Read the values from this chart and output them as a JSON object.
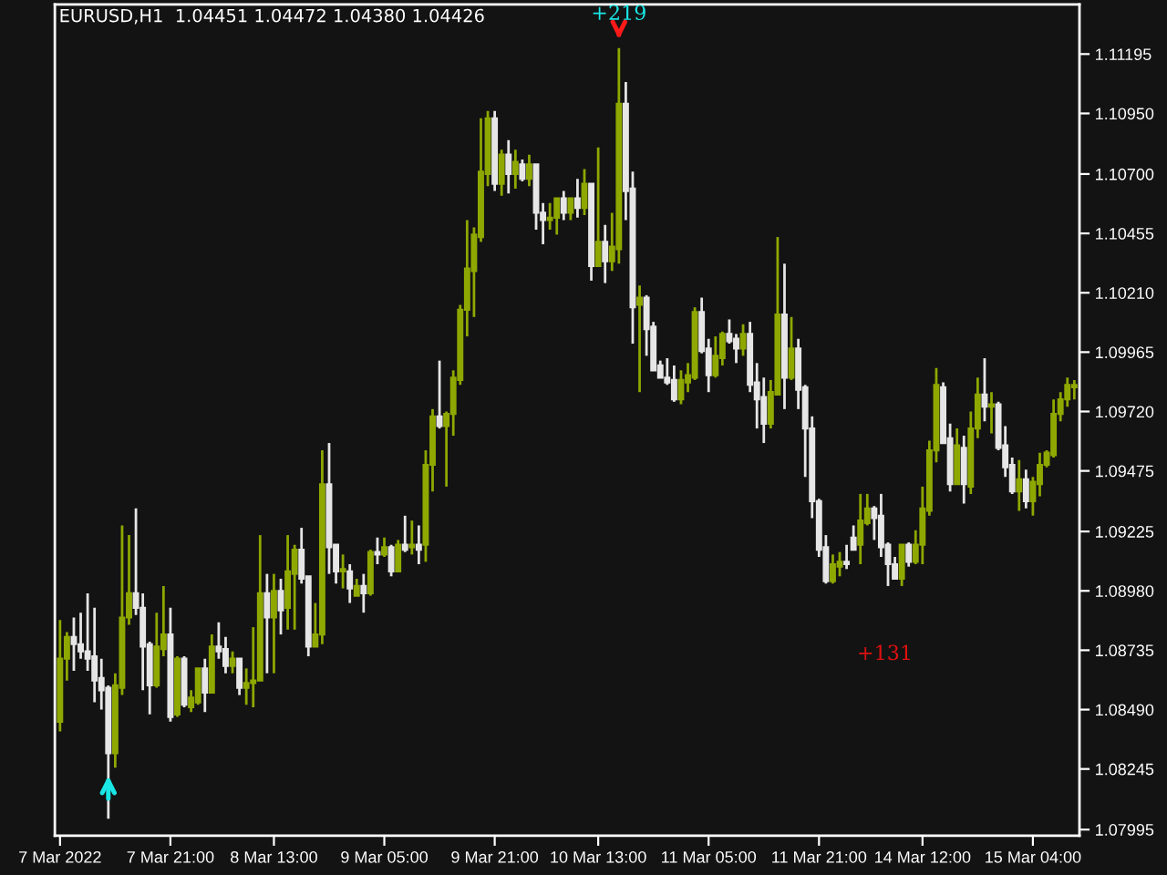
{
  "chart_data": {
    "type": "candlestick",
    "title": "EURUSD,H1  1.04451 1.04472 1.04380 1.04426",
    "annotations": [
      "+219",
      "+131"
    ],
    "categories": [
      "7 Mar 2022",
      null,
      null,
      null,
      null,
      null,
      null,
      null,
      null,
      null,
      null,
      null,
      null,
      null,
      null,
      null,
      "7 Mar 21:00",
      null,
      null,
      null,
      null,
      null,
      null,
      null,
      null,
      null,
      null,
      null,
      null,
      null,
      null,
      "8 Mar 13:00",
      null,
      null,
      null,
      null,
      null,
      null,
      null,
      null,
      null,
      null,
      null,
      null,
      null,
      null,
      null,
      "9 Mar 05:00",
      null,
      null,
      null,
      null,
      null,
      null,
      null,
      null,
      null,
      null,
      null,
      null,
      null,
      null,
      null,
      "9 Mar 21:00",
      null,
      null,
      null,
      null,
      null,
      null,
      null,
      null,
      null,
      null,
      null,
      null,
      null,
      null,
      "10 Mar 13:00",
      null,
      null,
      null,
      null,
      null,
      null,
      null,
      null,
      null,
      null,
      null,
      null,
      null,
      null,
      null,
      "11 Mar 05:00",
      null,
      null,
      null,
      null,
      null,
      null,
      null,
      null,
      null,
      null,
      null,
      null,
      null,
      null,
      null,
      "11 Mar 21:00",
      null,
      null,
      null,
      null,
      null,
      null,
      null,
      null,
      null,
      null,
      null,
      null,
      null,
      null,
      "14 Mar 12:00",
      null,
      null,
      null,
      null,
      null,
      null,
      null,
      null,
      null,
      null,
      null,
      null,
      null,
      null,
      null,
      "15 Mar 04:00",
      null,
      null,
      null,
      null,
      null,
      null
    ],
    "ohlc": [
      [
        1.0844,
        1.0886,
        1.084,
        1.087
      ],
      [
        1.087,
        1.0881,
        1.0861,
        1.0879
      ],
      [
        1.0879,
        1.0887,
        1.0865,
        1.0876
      ],
      [
        1.0876,
        1.0889,
        1.087,
        1.0873
      ],
      [
        1.0873,
        1.0897,
        1.0865,
        1.087
      ],
      [
        1.0871,
        1.0891,
        1.0852,
        1.0861
      ],
      [
        1.0862,
        1.087,
        1.0849,
        1.0857
      ],
      [
        1.0858,
        1.0859,
        1.0804,
        1.0831
      ],
      [
        1.0831,
        1.0864,
        1.0825,
        1.0859
      ],
      [
        1.0858,
        1.0925,
        1.0855,
        1.0887
      ],
      [
        1.0887,
        1.0921,
        1.0884,
        1.0897
      ],
      [
        1.0897,
        1.0932,
        1.0888,
        1.0891
      ],
      [
        1.0891,
        1.0897,
        1.0857,
        1.0875
      ],
      [
        1.0876,
        1.0877,
        1.0847,
        1.0859
      ],
      [
        1.0859,
        1.0889,
        1.0858,
        1.0875
      ],
      [
        1.0874,
        1.09,
        1.0871,
        1.088
      ],
      [
        1.088,
        1.0891,
        1.0844,
        1.0846
      ],
      [
        1.0847,
        1.0871,
        1.0846,
        1.087
      ],
      [
        1.087,
        1.0871,
        1.085,
        1.0851
      ],
      [
        1.085,
        1.0857,
        1.0848,
        1.0854
      ],
      [
        1.0852,
        1.0866,
        1.0851,
        1.0866
      ],
      [
        1.0866,
        1.087,
        1.0848,
        1.0856
      ],
      [
        1.0856,
        1.088,
        1.0856,
        1.0875
      ],
      [
        1.0875,
        1.0885,
        1.087,
        1.0873
      ],
      [
        1.0874,
        1.0879,
        1.0864,
        1.0867
      ],
      [
        1.0867,
        1.0873,
        1.0864,
        1.087
      ],
      [
        1.087,
        1.087,
        1.0855,
        1.0858
      ],
      [
        1.0858,
        1.0866,
        1.0851,
        1.086
      ],
      [
        1.086,
        1.0883,
        1.085,
        1.0861
      ],
      [
        1.0861,
        1.0921,
        1.0861,
        1.0897
      ],
      [
        1.0897,
        1.0905,
        1.0864,
        1.0887
      ],
      [
        1.0887,
        1.0905,
        1.0864,
        1.0898
      ],
      [
        1.0898,
        1.0903,
        1.088,
        1.089
      ],
      [
        1.0891,
        1.0921,
        1.0882,
        1.0906
      ],
      [
        1.0905,
        1.0917,
        1.0882,
        1.0915
      ],
      [
        1.0915,
        1.0924,
        1.0901,
        1.0903
      ],
      [
        1.0904,
        1.0904,
        1.0871,
        1.0875
      ],
      [
        1.0875,
        1.0893,
        1.0875,
        1.088
      ],
      [
        1.088,
        1.0956,
        1.0876,
        1.0942
      ],
      [
        1.0942,
        1.0959,
        1.0905,
        1.0916
      ],
      [
        1.0917,
        1.0917,
        1.0901,
        1.0906
      ],
      [
        1.0906,
        1.0913,
        1.0899,
        1.0907
      ],
      [
        1.0906,
        1.0909,
        1.0893,
        1.0899
      ],
      [
        1.0896,
        1.0903,
        1.0896,
        1.09
      ],
      [
        1.09,
        1.0905,
        1.0889,
        1.0897
      ],
      [
        1.0897,
        1.0915,
        1.0896,
        1.0914
      ],
      [
        1.0914,
        1.092,
        1.0909,
        1.0913
      ],
      [
        1.0913,
        1.092,
        1.0912,
        1.0916
      ],
      [
        1.0916,
        1.0917,
        1.0904,
        1.0906
      ],
      [
        1.0906,
        1.0919,
        1.0906,
        1.0917
      ],
      [
        1.0917,
        1.0929,
        1.0914,
        1.0915
      ],
      [
        1.0916,
        1.0927,
        1.0913,
        1.0917
      ],
      [
        1.0917,
        1.0925,
        1.0909,
        1.0915
      ],
      [
        1.0917,
        1.0956,
        1.091,
        1.095
      ],
      [
        1.095,
        1.0973,
        1.0939,
        1.097
      ],
      [
        1.097,
        1.0993,
        1.0965,
        1.0966
      ],
      [
        1.0966,
        1.0972,
        1.0941,
        1.0971
      ],
      [
        1.0971,
        1.0989,
        1.0962,
        1.0986
      ],
      [
        1.0985,
        1.1016,
        1.0983,
        1.1014
      ],
      [
        1.1014,
        1.1051,
        1.1003,
        1.1031
      ],
      [
        1.103,
        1.1048,
        1.1011,
        1.1045
      ],
      [
        1.1044,
        1.1093,
        1.1042,
        1.1071
      ],
      [
        1.107,
        1.1096,
        1.1065,
        1.1093
      ],
      [
        1.1093,
        1.1096,
        1.1063,
        1.1066
      ],
      [
        1.1066,
        1.108,
        1.1061,
        1.1078
      ],
      [
        1.1078,
        1.1084,
        1.1062,
        1.107
      ],
      [
        1.107,
        1.108,
        1.1064,
        1.1075
      ],
      [
        1.1074,
        1.1076,
        1.1067,
        1.1068
      ],
      [
        1.1068,
        1.1078,
        1.1065,
        1.1074
      ],
      [
        1.1074,
        1.1074,
        1.1047,
        1.1054
      ],
      [
        1.1054,
        1.1058,
        1.1041,
        1.1051
      ],
      [
        1.1051,
        1.1058,
        1.1047,
        1.1052
      ],
      [
        1.1052,
        1.106,
        1.1045,
        1.106
      ],
      [
        1.106,
        1.1063,
        1.1051,
        1.1054
      ],
      [
        1.1054,
        1.106,
        1.1051,
        1.106
      ],
      [
        1.106,
        1.1068,
        1.1052,
        1.1056
      ],
      [
        1.1056,
        1.1072,
        1.1053,
        1.1066
      ],
      [
        1.1066,
        1.1066,
        1.1026,
        1.1032
      ],
      [
        1.1032,
        1.1081,
        1.1032,
        1.1042
      ],
      [
        1.1042,
        1.1049,
        1.1025,
        1.1034
      ],
      [
        1.1034,
        1.1054,
        1.103,
        1.104
      ],
      [
        1.1039,
        1.1122,
        1.1033,
        1.1099
      ],
      [
        1.1099,
        1.1108,
        1.1051,
        1.1063
      ],
      [
        1.1064,
        1.1071,
        1.1,
        1.1015
      ],
      [
        1.1016,
        1.1024,
        1.098,
        1.1019
      ],
      [
        1.1019,
        1.102,
        1.0995,
        1.1006
      ],
      [
        1.1007,
        1.1009,
        1.0989,
        1.0989
      ],
      [
        1.0991,
        1.0993,
        1.0986,
        1.0986
      ],
      [
        1.0986,
        1.0994,
        1.0983,
        1.0984
      ],
      [
        1.0985,
        1.0991,
        1.0976,
        1.0977
      ],
      [
        1.0977,
        1.0989,
        1.0975,
        1.0985
      ],
      [
        1.0984,
        1.0992,
        1.098,
        1.0987
      ],
      [
        1.0986,
        1.1015,
        1.0985,
        1.1013
      ],
      [
        1.1013,
        1.1019,
        1.0996,
        1.0997
      ],
      [
        1.0998,
        1.1002,
        1.098,
        1.0987
      ],
      [
        1.0987,
        1.1003,
        1.0986,
        1.0995
      ],
      [
        1.0994,
        1.1005,
        1.0991,
        1.1004
      ],
      [
        1.1004,
        1.101,
        1.1,
        1.1001
      ],
      [
        1.1002,
        1.1004,
        1.0992,
        1.0998
      ],
      [
        1.0998,
        1.1008,
        1.0995,
        1.1004
      ],
      [
        1.1004,
        1.1009,
        1.098,
        1.0983
      ],
      [
        1.0984,
        1.0992,
        1.0965,
        1.0977
      ],
      [
        1.0978,
        1.0986,
        1.0959,
        1.0967
      ],
      [
        1.0967,
        1.0985,
        1.0965,
        1.098
      ],
      [
        1.0979,
        1.1044,
        1.0979,
        1.1012
      ],
      [
        1.1012,
        1.1033,
        1.0973,
        1.0986
      ],
      [
        1.0986,
        1.1011,
        1.0985,
        1.0998
      ],
      [
        1.0998,
        1.1002,
        1.0973,
        1.0981
      ],
      [
        1.0982,
        1.0983,
        1.0945,
        1.0965
      ],
      [
        1.0965,
        1.097,
        1.0928,
        1.0935
      ],
      [
        1.0935,
        1.0936,
        1.0912,
        1.0915
      ],
      [
        1.0916,
        1.0921,
        1.0901,
        1.0902
      ],
      [
        1.0902,
        1.0913,
        1.0901,
        1.0909
      ],
      [
        1.0908,
        1.0914,
        1.0904,
        1.091
      ],
      [
        1.091,
        1.0917,
        1.0907,
        1.0909
      ],
      [
        1.092,
        1.0925,
        1.0915,
        1.0915
      ],
      [
        1.0917,
        1.0938,
        1.0909,
        1.0927
      ],
      [
        1.0926,
        1.0938,
        1.0925,
        1.0932
      ],
      [
        1.0932,
        1.0933,
        1.0919,
        1.0928
      ],
      [
        1.0929,
        1.0938,
        1.0912,
        1.0916
      ],
      [
        1.0917,
        1.0918,
        1.09,
        1.0909
      ],
      [
        1.0909,
        1.0912,
        1.0903,
        1.0903
      ],
      [
        1.0903,
        1.0917,
        1.09,
        1.0917
      ],
      [
        1.0917,
        1.0918,
        1.0908,
        1.091
      ],
      [
        1.091,
        1.0923,
        1.0909,
        1.0917
      ],
      [
        1.0917,
        1.0941,
        1.0909,
        1.0932
      ],
      [
        1.0931,
        1.096,
        1.0929,
        1.0956
      ],
      [
        1.0956,
        1.099,
        1.0951,
        1.0983
      ],
      [
        1.0982,
        1.0984,
        1.0959,
        1.0959
      ],
      [
        1.0961,
        1.0967,
        1.0939,
        1.0942
      ],
      [
        1.0942,
        1.0965,
        1.0942,
        1.0958
      ],
      [
        1.0957,
        1.0962,
        1.0934,
        1.0942
      ],
      [
        1.0941,
        1.0972,
        1.0938,
        1.0965
      ],
      [
        1.0965,
        1.0986,
        1.0961,
        1.0979
      ],
      [
        1.0979,
        1.0994,
        1.0968,
        1.0974
      ],
      [
        1.0974,
        1.098,
        1.0963,
        1.0975
      ],
      [
        1.0975,
        1.0976,
        1.0956,
        1.0957
      ],
      [
        1.0958,
        1.0966,
        1.0945,
        1.0949
      ],
      [
        1.095,
        1.0953,
        1.0938,
        1.0939
      ],
      [
        1.0939,
        1.0952,
        1.0931,
        1.0944
      ],
      [
        1.0944,
        1.0948,
        1.0932,
        1.0935
      ],
      [
        1.0935,
        1.0945,
        1.0929,
        1.0943
      ],
      [
        1.0942,
        1.0955,
        1.0937,
        1.095
      ],
      [
        1.095,
        1.0956,
        1.0949,
        1.0955
      ],
      [
        1.0954,
        1.0977,
        1.0953,
        1.0971
      ],
      [
        1.0971,
        1.098,
        1.0968,
        1.0977
      ],
      [
        1.0977,
        1.0986,
        1.0974,
        1.0983
      ],
      [
        1.0982,
        1.0985,
        1.0977,
        1.0983
      ]
    ],
    "ylim": [
      1.0797,
      1.114
    ],
    "yticks": [
      {
        "value": 1.07995,
        "label": "1.07995"
      },
      {
        "value": 1.08245,
        "label": "1.08245"
      },
      {
        "value": 1.0849,
        "label": "1.08490"
      },
      {
        "value": 1.08735,
        "label": "1.08735"
      },
      {
        "value": 1.0898,
        "label": "1.08980"
      },
      {
        "value": 1.09225,
        "label": "1.09225"
      },
      {
        "value": 1.09475,
        "label": "1.09475"
      },
      {
        "value": 1.0972,
        "label": "1.09720"
      },
      {
        "value": 1.09965,
        "label": "1.09965"
      },
      {
        "value": 1.1021,
        "label": "1.10210"
      },
      {
        "value": 1.10455,
        "label": "1.10455"
      },
      {
        "value": 1.107,
        "label": "1.10700"
      },
      {
        "value": 1.1095,
        "label": "1.10950"
      },
      {
        "value": 1.11195,
        "label": "1.11195"
      }
    ]
  }
}
